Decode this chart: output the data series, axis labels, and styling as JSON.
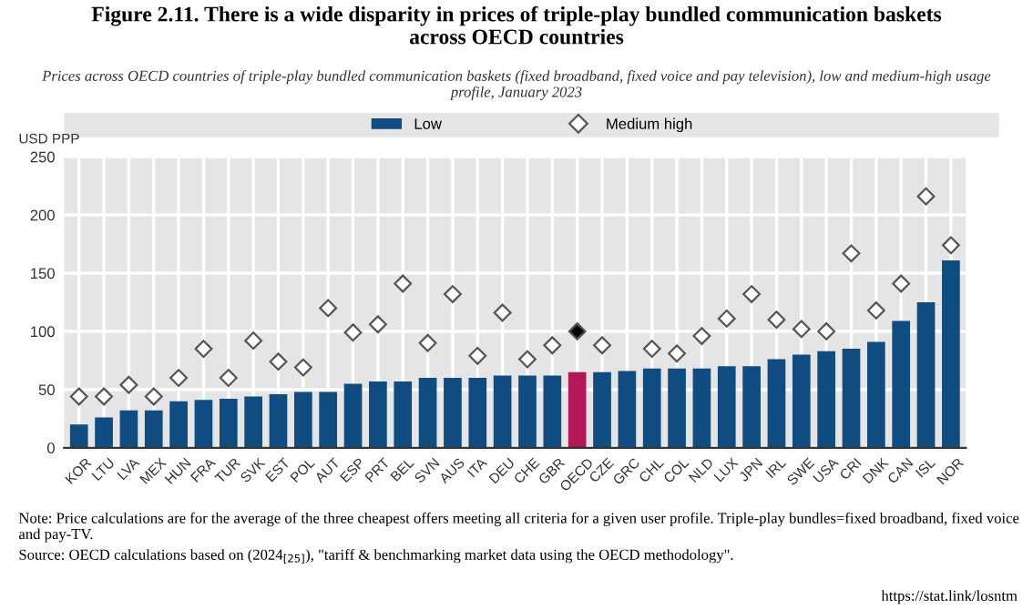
{
  "chart_data": {
    "type": "bar",
    "title": "Figure 2.11. There is a wide disparity in prices of triple-play bundled communication baskets\nacross OECD countries",
    "subtitle": "Prices across OECD countries of triple-play bundled communication baskets (fixed broadband, fixed voice and pay television), low and medium-high usage\nprofile, January 2023",
    "ylabel": "USD PPP",
    "categories": [
      "KOR",
      "LTU",
      "LVA",
      "MEX",
      "HUN",
      "FRA",
      "TUR",
      "SVK",
      "EST",
      "POL",
      "AUT",
      "ESP",
      "PRT",
      "BEL",
      "SVN",
      "AUS",
      "ITA",
      "DEU",
      "CHE",
      "GBR",
      "OECD",
      "CZE",
      "GRC",
      "CHL",
      "COL",
      "NLD",
      "LUX",
      "JPN",
      "IRL",
      "SWE",
      "USA",
      "CRI",
      "DNK",
      "CAN",
      "ISL",
      "NOR"
    ],
    "series": [
      {
        "name": "Low",
        "color": "#0f4c81",
        "colors": [
          "#0f4c81",
          "#0f4c81",
          "#0f4c81",
          "#0f4c81",
          "#0f4c81",
          "#0f4c81",
          "#0f4c81",
          "#0f4c81",
          "#0f4c81",
          "#0f4c81",
          "#0f4c81",
          "#0f4c81",
          "#0f4c81",
          "#0f4c81",
          "#0f4c81",
          "#0f4c81",
          "#0f4c81",
          "#0f4c81",
          "#0f4c81",
          "#0f4c81",
          "#b5175a",
          "#0f4c81",
          "#0f4c81",
          "#0f4c81",
          "#0f4c81",
          "#0f4c81",
          "#0f4c81",
          "#0f4c81",
          "#0f4c81",
          "#0f4c81",
          "#0f4c81",
          "#0f4c81",
          "#0f4c81",
          "#0f4c81",
          "#0f4c81",
          "#0f4c81"
        ],
        "values": [
          20,
          26,
          32,
          32,
          40,
          41,
          42,
          44,
          46,
          48,
          48,
          55,
          57,
          57,
          60,
          60,
          60,
          62,
          62,
          62,
          65,
          65,
          66,
          68,
          68,
          68,
          70,
          70,
          76,
          80,
          83,
          85,
          91,
          109,
          125,
          161
        ]
      },
      {
        "name": "Medium high",
        "type": "scatter",
        "marker": "diamond",
        "color": "#ffffff",
        "colors": [
          "#ffffff",
          "#ffffff",
          "#ffffff",
          "#ffffff",
          "#ffffff",
          "#ffffff",
          "#ffffff",
          "#ffffff",
          "#ffffff",
          "#ffffff",
          "#ffffff",
          "#ffffff",
          "#ffffff",
          "#ffffff",
          "#ffffff",
          "#ffffff",
          "#ffffff",
          "#ffffff",
          "#ffffff",
          "#ffffff",
          "#000000",
          "#ffffff",
          "#ffffff",
          "#ffffff",
          "#ffffff",
          "#ffffff",
          "#ffffff",
          "#ffffff",
          "#ffffff",
          "#ffffff",
          "#ffffff",
          "#ffffff",
          "#ffffff",
          "#ffffff",
          "#ffffff",
          "#ffffff"
        ],
        "values": [
          44,
          44,
          54,
          44,
          60,
          85,
          60,
          92,
          74,
          69,
          120,
          99,
          106,
          141,
          90,
          132,
          79,
          116,
          76,
          88,
          100,
          88,
          null,
          85,
          81,
          96,
          111,
          132,
          110,
          102,
          100,
          167,
          118,
          141,
          216,
          174
        ]
      }
    ],
    "ylim": [
      0,
      250
    ],
    "yticks": [
      0,
      50,
      100,
      150,
      200,
      250
    ],
    "grid": true,
    "legend": "top",
    "annotations": [
      "Note: Price calculations are for the average of the three cheapest offers meeting all criteria for a given user profile. Triple-play bundles=fixed broadband, fixed voice and pay-TV.",
      "Source: OECD calculations based on (2024$_{[25]}$), \"tariff & benchmarking market data using the OECD methodology\".",
      "https://stat.link/losntm"
    ]
  }
}
